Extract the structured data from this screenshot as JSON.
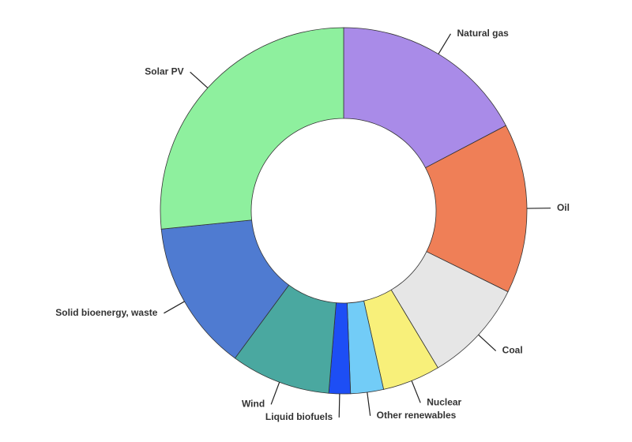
{
  "chart_data": {
    "type": "donut",
    "categories": [
      "Natural gas",
      "Oil",
      "Coal",
      "Nuclear",
      "Other renewables",
      "Liquid biofuels",
      "Wind",
      "Solid bioenergy, waste",
      "Solar PV"
    ],
    "values": [
      17.3,
      15.0,
      9.1,
      5.1,
      2.9,
      1.9,
      8.8,
      13.3,
      26.6
    ],
    "colors": [
      "#a98be8",
      "#ef7f57",
      "#e6e6e6",
      "#f8f07a",
      "#72ccf7",
      "#1d4ef5",
      "#4aa8a0",
      "#4f7bd1",
      "#8ef09e"
    ]
  }
}
